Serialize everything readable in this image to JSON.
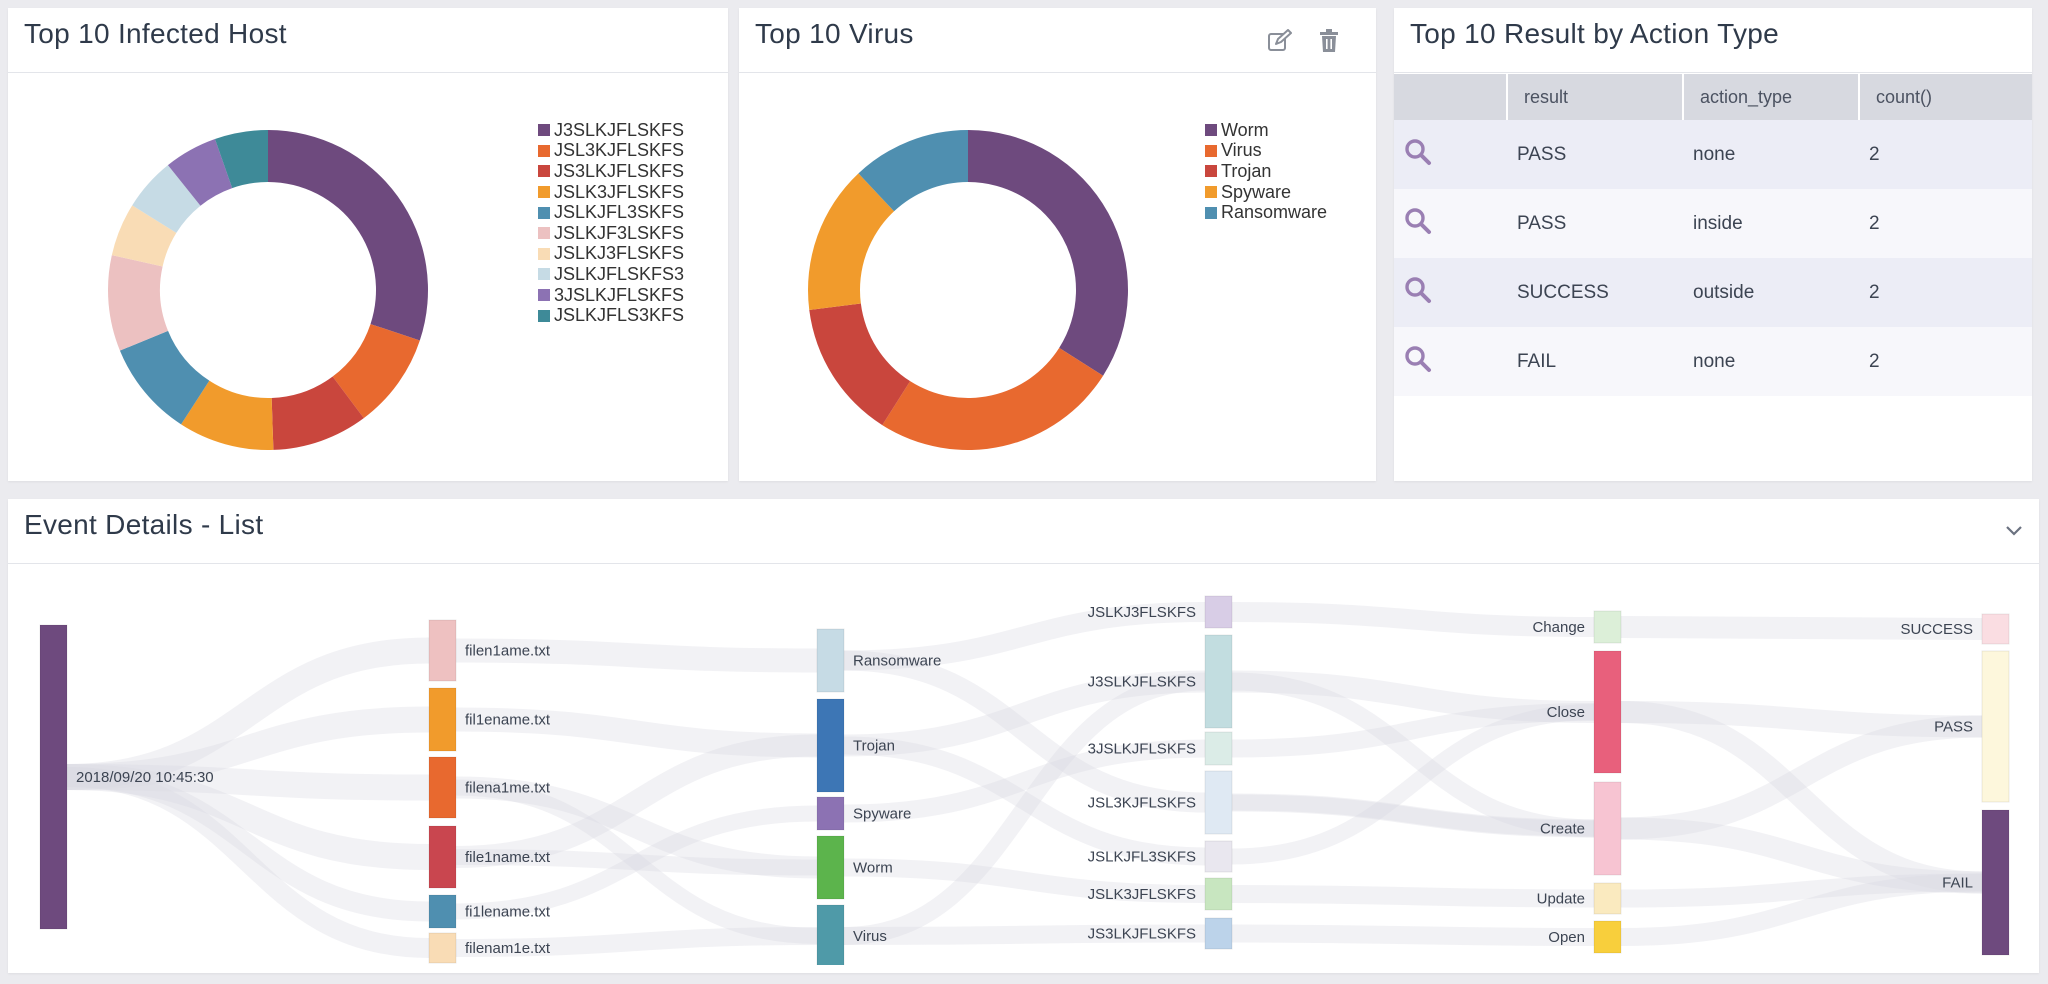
{
  "panels": {
    "infected_host": {
      "title": "Top 10 Infected Host",
      "legend": [
        {
          "label": "J3SLKJFLSKFS",
          "color": "#6e4a7e",
          "value": 28
        },
        {
          "label": "JSL3KJFLSKFS",
          "color": "#e8692f",
          "value": 9
        },
        {
          "label": "JS3LKJFLSKFS",
          "color": "#c9463d",
          "value": 9
        },
        {
          "label": "JSLK3JFLSKFS",
          "color": "#f19b2c",
          "value": 9
        },
        {
          "label": "JSLKJFL3SKFS",
          "color": "#4f8fb0",
          "value": 9
        },
        {
          "label": "JSLKJF3LSKFS",
          "color": "#ecc1c1",
          "value": 9
        },
        {
          "label": "JSLKJ3FLSKFS",
          "color": "#f9dcb5",
          "value": 5
        },
        {
          "label": "JSLKJFLSKFS3",
          "color": "#c6dbe5",
          "value": 5
        },
        {
          "label": "3JSLKJFLSKFS",
          "color": "#8c72b3",
          "value": 5
        },
        {
          "label": "JSLKJFLS3KFS",
          "color": "#3e8a98",
          "value": 5
        }
      ]
    },
    "virus": {
      "title": "Top 10 Virus",
      "edit_icon": "edit-icon",
      "delete_icon": "trash-icon",
      "legend": [
        {
          "label": "Worm",
          "color": "#6e4a7e",
          "value": 34
        },
        {
          "label": "Virus",
          "color": "#e8692f",
          "value": 25
        },
        {
          "label": "Trojan",
          "color": "#c9463d",
          "value": 14
        },
        {
          "label": "Spyware",
          "color": "#f19b2c",
          "value": 15
        },
        {
          "label": "Ransomware",
          "color": "#4f8fb0",
          "value": 12
        }
      ]
    },
    "action_type": {
      "title": "Top 10 Result by Action Type",
      "columns": [
        "",
        "result",
        "action_type",
        "count()"
      ],
      "rows": [
        {
          "result": "PASS",
          "action_type": "none",
          "count": "2"
        },
        {
          "result": "PASS",
          "action_type": "inside",
          "count": "2"
        },
        {
          "result": "SUCCESS",
          "action_type": "outside",
          "count": "2"
        },
        {
          "result": "FAIL",
          "action_type": "none",
          "count": "2"
        }
      ]
    },
    "event_details": {
      "title": "Event Details - List",
      "collapse_icon": "chevron-down-icon",
      "sankey": {
        "columns": [
          [
            {
              "label": "2018/09/20 10:45:30",
              "color": "#6e4a7e"
            }
          ],
          [
            {
              "label": "filen1ame.txt",
              "color": "#eec1c1"
            },
            {
              "label": "fil1ename.txt",
              "color": "#f19b2c"
            },
            {
              "label": "filena1me.txt",
              "color": "#e8692f"
            },
            {
              "label": "file1name.txt",
              "color": "#c9464f"
            },
            {
              "label": "fi1lename.txt",
              "color": "#4f8fb0"
            },
            {
              "label": "filenam1e.txt",
              "color": "#f9dcb5"
            }
          ],
          [
            {
              "label": "Ransomware",
              "color": "#c6dbe5"
            },
            {
              "label": "Trojan",
              "color": "#3d76b5"
            },
            {
              "label": "Spyware",
              "color": "#8c72b3"
            },
            {
              "label": "Worm",
              "color": "#5cb44c"
            },
            {
              "label": "Virus",
              "color": "#4f9aa8"
            }
          ],
          [
            {
              "label": "JSLKJ3FLSKFS",
              "color": "#d8cde6"
            },
            {
              "label": "J3SLKJFLSKFS",
              "color": "#c2dde0"
            },
            {
              "label": "3JSLKJFLSKFS",
              "color": "#dbece7"
            },
            {
              "label": "JSL3KJFLSKFS",
              "color": "#dfe9f3"
            },
            {
              "label": "JSLKJFL3SKFS",
              "color": "#e9e7ef"
            },
            {
              "label": "JSLK3JFLSKFS",
              "color": "#c8e6c0"
            },
            {
              "label": "JS3LKJFLSKFS",
              "color": "#bcd3ea"
            }
          ],
          [
            {
              "label": "Change",
              "color": "#dcefd8"
            },
            {
              "label": "Close",
              "color": "#e8607c"
            },
            {
              "label": "Create",
              "color": "#f7c4d2"
            },
            {
              "label": "Update",
              "color": "#faeabf"
            },
            {
              "label": "Open",
              "color": "#f8cf3c"
            }
          ],
          [
            {
              "label": "SUCCESS",
              "color": "#fadde2"
            },
            {
              "label": "PASS",
              "color": "#fdf7dc"
            },
            {
              "label": "FAIL",
              "color": "#6e4a7e"
            }
          ]
        ]
      }
    }
  }
}
